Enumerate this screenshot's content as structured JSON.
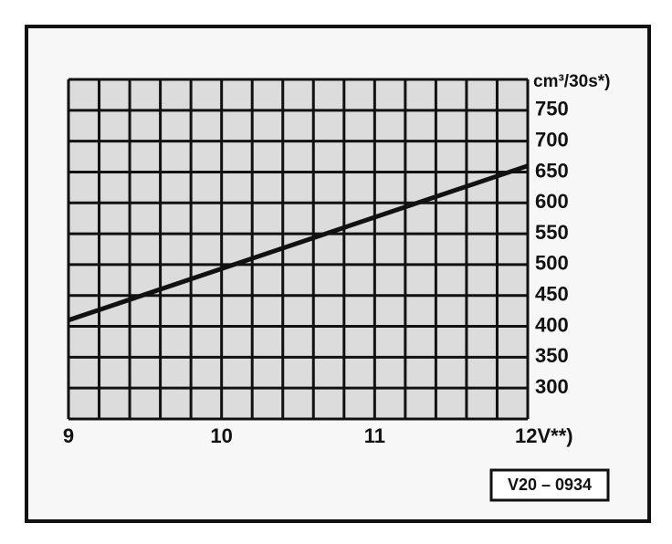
{
  "chart_data": {
    "type": "line",
    "y_unit_label": "cm³/30s*)",
    "code_label": "V20 – 0934",
    "x": [
      9,
      12
    ],
    "series": [
      {
        "color": "#111111",
        "values": [
          410,
          660
        ]
      }
    ],
    "xlim": [
      9,
      12
    ],
    "xticks": [
      9,
      10,
      11,
      {
        "value": 12,
        "label": "12V**)"
      }
    ],
    "ylim": [
      250,
      800
    ],
    "yticks": [
      300,
      350,
      400,
      450,
      500,
      550,
      600,
      650,
      700,
      750
    ],
    "x_grid_step": 0.2,
    "y_grid_step": 50,
    "grid": true
  }
}
